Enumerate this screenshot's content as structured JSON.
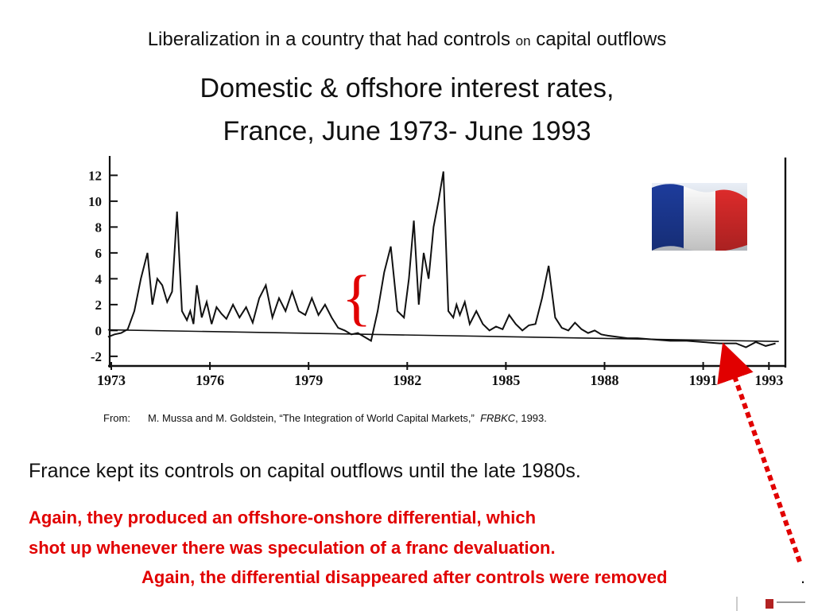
{
  "header": {
    "subtitle_part1": "Liberalization in a country that had controls ",
    "subtitle_part2": "on",
    "subtitle_part3": " capital outfl‌ows",
    "title_line1": "Domestic & offshore interest rates,",
    "title_line2": "France, June 1973- June 1993"
  },
  "chart_data": {
    "type": "line",
    "title": "",
    "xlabel": "",
    "ylabel": "",
    "xlim": [
      1973,
      1993.5
    ],
    "ylim": [
      -2.5,
      13.5
    ],
    "x_ticks": [
      "1973",
      "1976",
      "1979",
      "1982",
      "1985",
      "1988",
      "1991",
      "1993"
    ],
    "x_tick_values": [
      1973,
      1976,
      1979,
      1982,
      1985,
      1988,
      1991,
      1993
    ],
    "y_ticks": [
      "12",
      "10",
      "8",
      "6",
      "4",
      "2",
      "0",
      "-2"
    ],
    "y_tick_values": [
      12,
      10,
      8,
      6,
      4,
      2,
      0,
      -2
    ],
    "grid": false,
    "series": [
      {
        "x": [
          1972.9,
          1973.1,
          1973.3,
          1973.5,
          1973.7,
          1973.9,
          1974.1,
          1974.25,
          1974.4,
          1974.55,
          1974.7,
          1974.85,
          1975.0,
          1975.15,
          1975.3,
          1975.4,
          1975.5,
          1975.6,
          1975.75,
          1975.9,
          1976.05,
          1976.2,
          1976.35,
          1976.5,
          1976.7,
          1976.9,
          1977.1,
          1977.3,
          1977.5,
          1977.7,
          1977.9,
          1978.1,
          1978.3,
          1978.5,
          1978.7,
          1978.9,
          1979.1,
          1979.3,
          1979.5,
          1979.7,
          1979.9,
          1980.1,
          1980.3,
          1980.5,
          1980.7,
          1980.9,
          1981.1,
          1981.3,
          1981.5,
          1981.7,
          1981.9,
          1982.05,
          1982.2,
          1982.35,
          1982.5,
          1982.65,
          1982.8,
          1982.95,
          1983.1,
          1983.25,
          1983.4,
          1983.5,
          1983.6,
          1983.75,
          1983.9,
          1984.1,
          1984.3,
          1984.5,
          1984.7,
          1984.9,
          1985.1,
          1985.3,
          1985.5,
          1985.7,
          1985.9,
          1986.1,
          1986.3,
          1986.5,
          1986.7,
          1986.9,
          1987.1,
          1987.3,
          1987.5,
          1987.7,
          1987.9,
          1988.1,
          1988.4,
          1988.7,
          1989.0,
          1989.5,
          1990.0,
          1990.5,
          1991.0,
          1991.5,
          1992.0,
          1992.3,
          1992.6,
          1992.9,
          1993.2
        ],
        "values": [
          -0.5,
          -0.3,
          -0.2,
          0.1,
          1.5,
          4.0,
          6.0,
          2.0,
          4.0,
          3.5,
          2.2,
          3.0,
          9.2,
          1.5,
          0.8,
          1.5,
          0.5,
          3.5,
          1.0,
          2.2,
          0.5,
          1.8,
          1.3,
          0.9,
          2.0,
          1.0,
          1.8,
          0.6,
          2.5,
          3.5,
          1.0,
          2.5,
          1.5,
          3.0,
          1.5,
          1.2,
          2.5,
          1.2,
          2.0,
          1.0,
          0.2,
          0.0,
          -0.3,
          -0.2,
          -0.5,
          -0.8,
          1.5,
          4.5,
          6.5,
          1.5,
          1.0,
          4.0,
          8.5,
          2.0,
          6.0,
          4.0,
          8.0,
          10.0,
          12.3,
          1.5,
          1.0,
          2.0,
          1.2,
          2.2,
          0.5,
          1.5,
          0.5,
          0.0,
          0.3,
          0.1,
          1.2,
          0.5,
          0.0,
          0.4,
          0.5,
          2.5,
          5.0,
          1.0,
          0.2,
          0.0,
          0.6,
          0.1,
          -0.2,
          0.0,
          -0.3,
          -0.4,
          -0.5,
          -0.6,
          -0.6,
          -0.7,
          -0.8,
          -0.8,
          -0.9,
          -1.0,
          -1.0,
          -1.3,
          -0.9,
          -1.2,
          -1.0
        ]
      }
    ],
    "annotations": [
      "{"
    ]
  },
  "flag": {
    "name": "france-flag-icon",
    "colors": [
      "#1d3c9c",
      "#ffffff",
      "#e22c2c"
    ]
  },
  "source": {
    "prefix": "From:",
    "authors": "M. Mussa and M. Goldstein, “The Integration of World Capital Markets,”",
    "journal": "FRBKC",
    "year": ", 1993."
  },
  "body": {
    "statement": "France kept its controls on capital outflows until the late 1980s.",
    "red_line1": "Again, they produced an offshore-onshore differential, which",
    "red_line2": "shot up whenever there was speculation of a franc devaluation.",
    "red_line3": "Again, the differential disappeared after controls were removed",
    "period": "."
  },
  "colors": {
    "accent_red": "#e10000",
    "text": "#111111"
  }
}
